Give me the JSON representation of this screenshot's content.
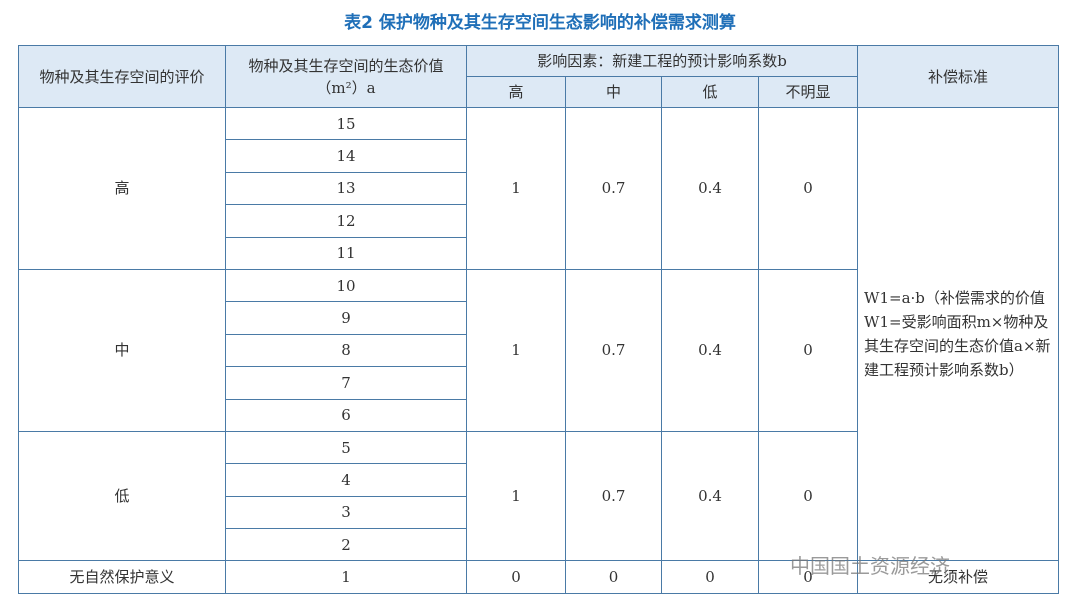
{
  "title": "表2 保护物种及其生存空间生态影响的补偿需求测算",
  "table": {
    "headers": [
      "物种及其生存空间的评价",
      "物种及其生存空间的生态价值（m²）a",
      "影响因素：新建工程的预计影响系数b",
      "补偿标准"
    ],
    "sub_headers": [
      "高",
      "中",
      "低",
      "不明显"
    ],
    "groups": [
      {
        "level": "高",
        "values": [
          15,
          14,
          13,
          12,
          11
        ],
        "coefficients": [
          1,
          0.7,
          0.4,
          0
        ]
      },
      {
        "level": "中",
        "values": [
          10,
          9,
          8,
          7,
          6
        ],
        "coefficients": [
          1,
          0.7,
          0.4,
          0
        ]
      },
      {
        "level": "低",
        "values": [
          5,
          4,
          3,
          2
        ],
        "coefficients": [
          1,
          0.7,
          0.4,
          0
        ]
      }
    ],
    "standard": "W1=a·b（补偿需求的价值W1=受影响面积m×物种及其生存空间的生态价值a×新建工程预计影响系数b）",
    "last_row": {
      "level": "无自然保护意义",
      "value": 1,
      "coefficients": [
        0,
        0,
        0,
        0
      ],
      "standard": "无须补偿"
    }
  },
  "watermark": "中国国土资源经济"
}
